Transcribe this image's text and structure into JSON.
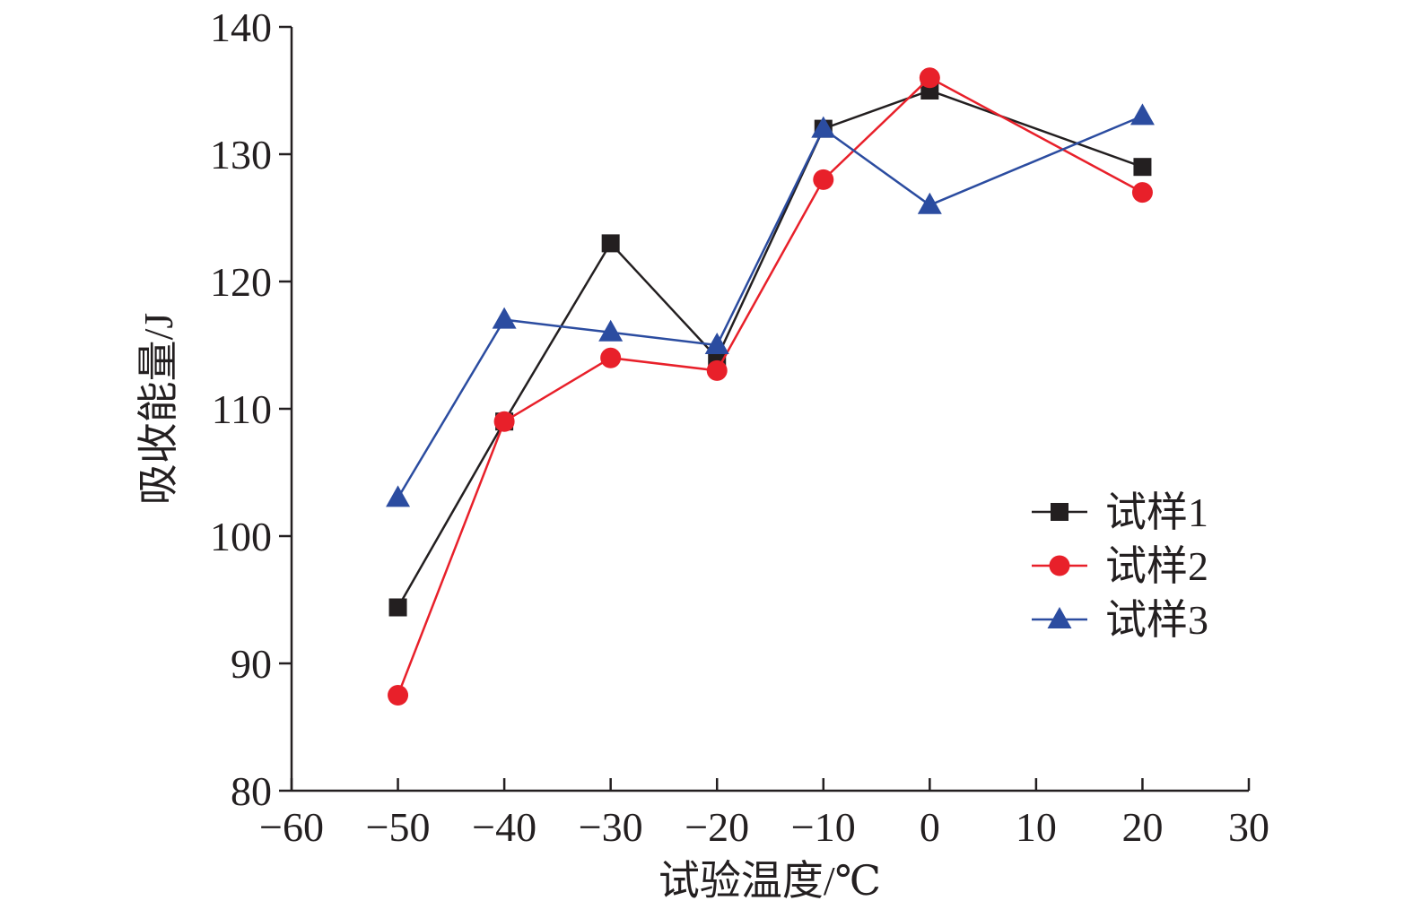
{
  "chart_data": {
    "type": "line",
    "xlabel": "试验温度/℃",
    "ylabel": "吸收能量/J",
    "xlim": [
      -60,
      30
    ],
    "ylim": [
      80,
      140
    ],
    "xticks": [
      -60,
      -50,
      -40,
      -30,
      -20,
      -10,
      0,
      10,
      20,
      30
    ],
    "yticks": [
      80,
      90,
      100,
      110,
      120,
      130,
      140
    ],
    "xtick_labels": [
      "−60",
      "−50",
      "−40",
      "−30",
      "−20",
      "−10",
      "0",
      "10",
      "20",
      "30"
    ],
    "ytick_labels": [
      "80",
      "90",
      "100",
      "110",
      "120",
      "130",
      "140"
    ],
    "x": [
      -50,
      -40,
      -30,
      -20,
      -10,
      0,
      20
    ],
    "series": [
      {
        "name": "试样1",
        "marker": "square",
        "color": "#231f20",
        "values": [
          94.4,
          109,
          123,
          114,
          132,
          135,
          129
        ]
      },
      {
        "name": "试样2",
        "marker": "circle",
        "color": "#e8202a",
        "values": [
          87.5,
          109,
          114,
          113,
          128,
          136,
          127
        ]
      },
      {
        "name": "试样3",
        "marker": "triangle",
        "color": "#2b4ca0",
        "values": [
          103,
          117,
          116,
          115,
          132,
          126,
          133
        ]
      }
    ],
    "grid": false,
    "legend_position": "right"
  }
}
